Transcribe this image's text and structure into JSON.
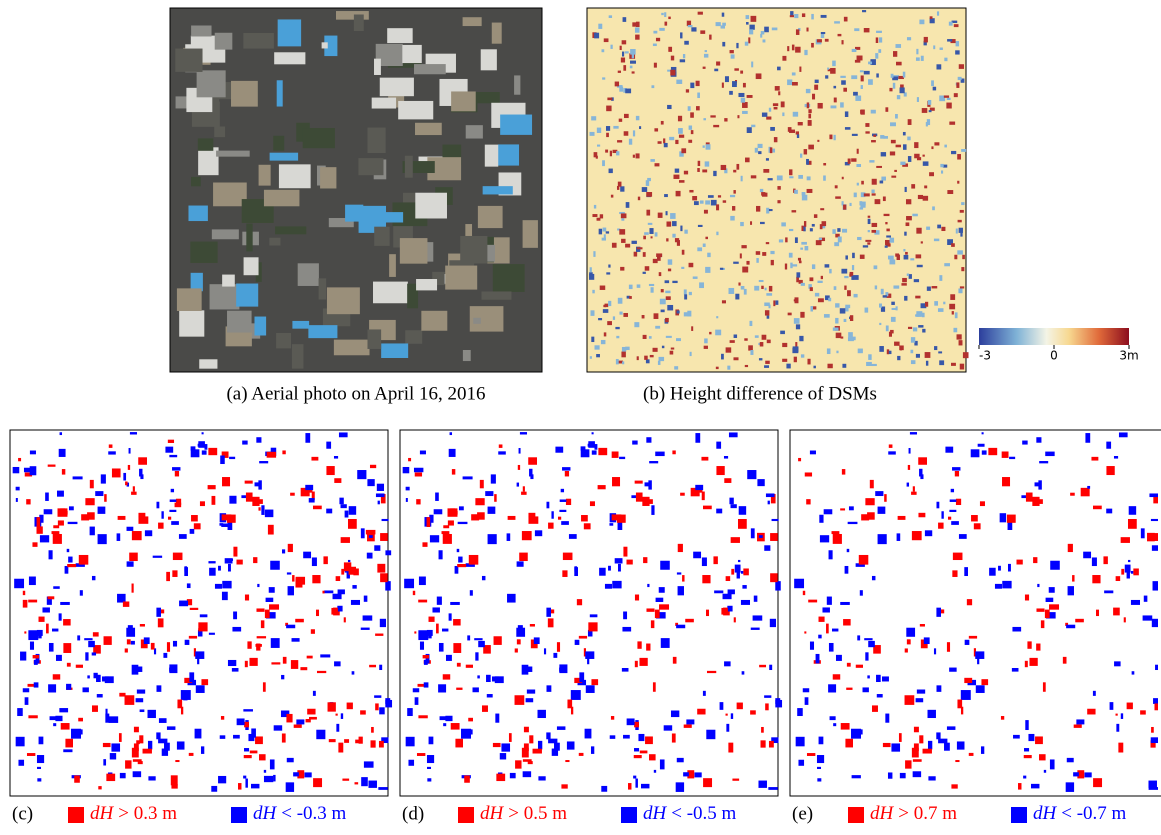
{
  "figure": {
    "top_panels": [
      {
        "caption": "(a) Aerial photo on April 16, 2016"
      },
      {
        "caption": "(b) Height difference of DSMs"
      }
    ],
    "colorbar": {
      "clim": [
        -3,
        3
      ],
      "ticks": [
        {
          "value": -3,
          "label": "-3"
        },
        0,
        {
          "value": 3,
          "label": "3m"
        }
      ]
    },
    "bottom_panels": [
      {
        "label": "(c)",
        "pos": {
          "var": "dH",
          "text": "> 0.3 m"
        },
        "neg": {
          "var": "dH",
          "text": "< -0.3 m"
        }
      },
      {
        "label": "(d)",
        "pos": {
          "var": "dH",
          "text": "> 0.5 m"
        },
        "neg": {
          "var": "dH",
          "text": "< -0.5 m"
        }
      },
      {
        "label": "(e)",
        "pos": {
          "var": "dH",
          "text": "> 0.7 m"
        },
        "neg": {
          "var": "dH",
          "text": "< -0.7 m"
        }
      }
    ]
  }
}
